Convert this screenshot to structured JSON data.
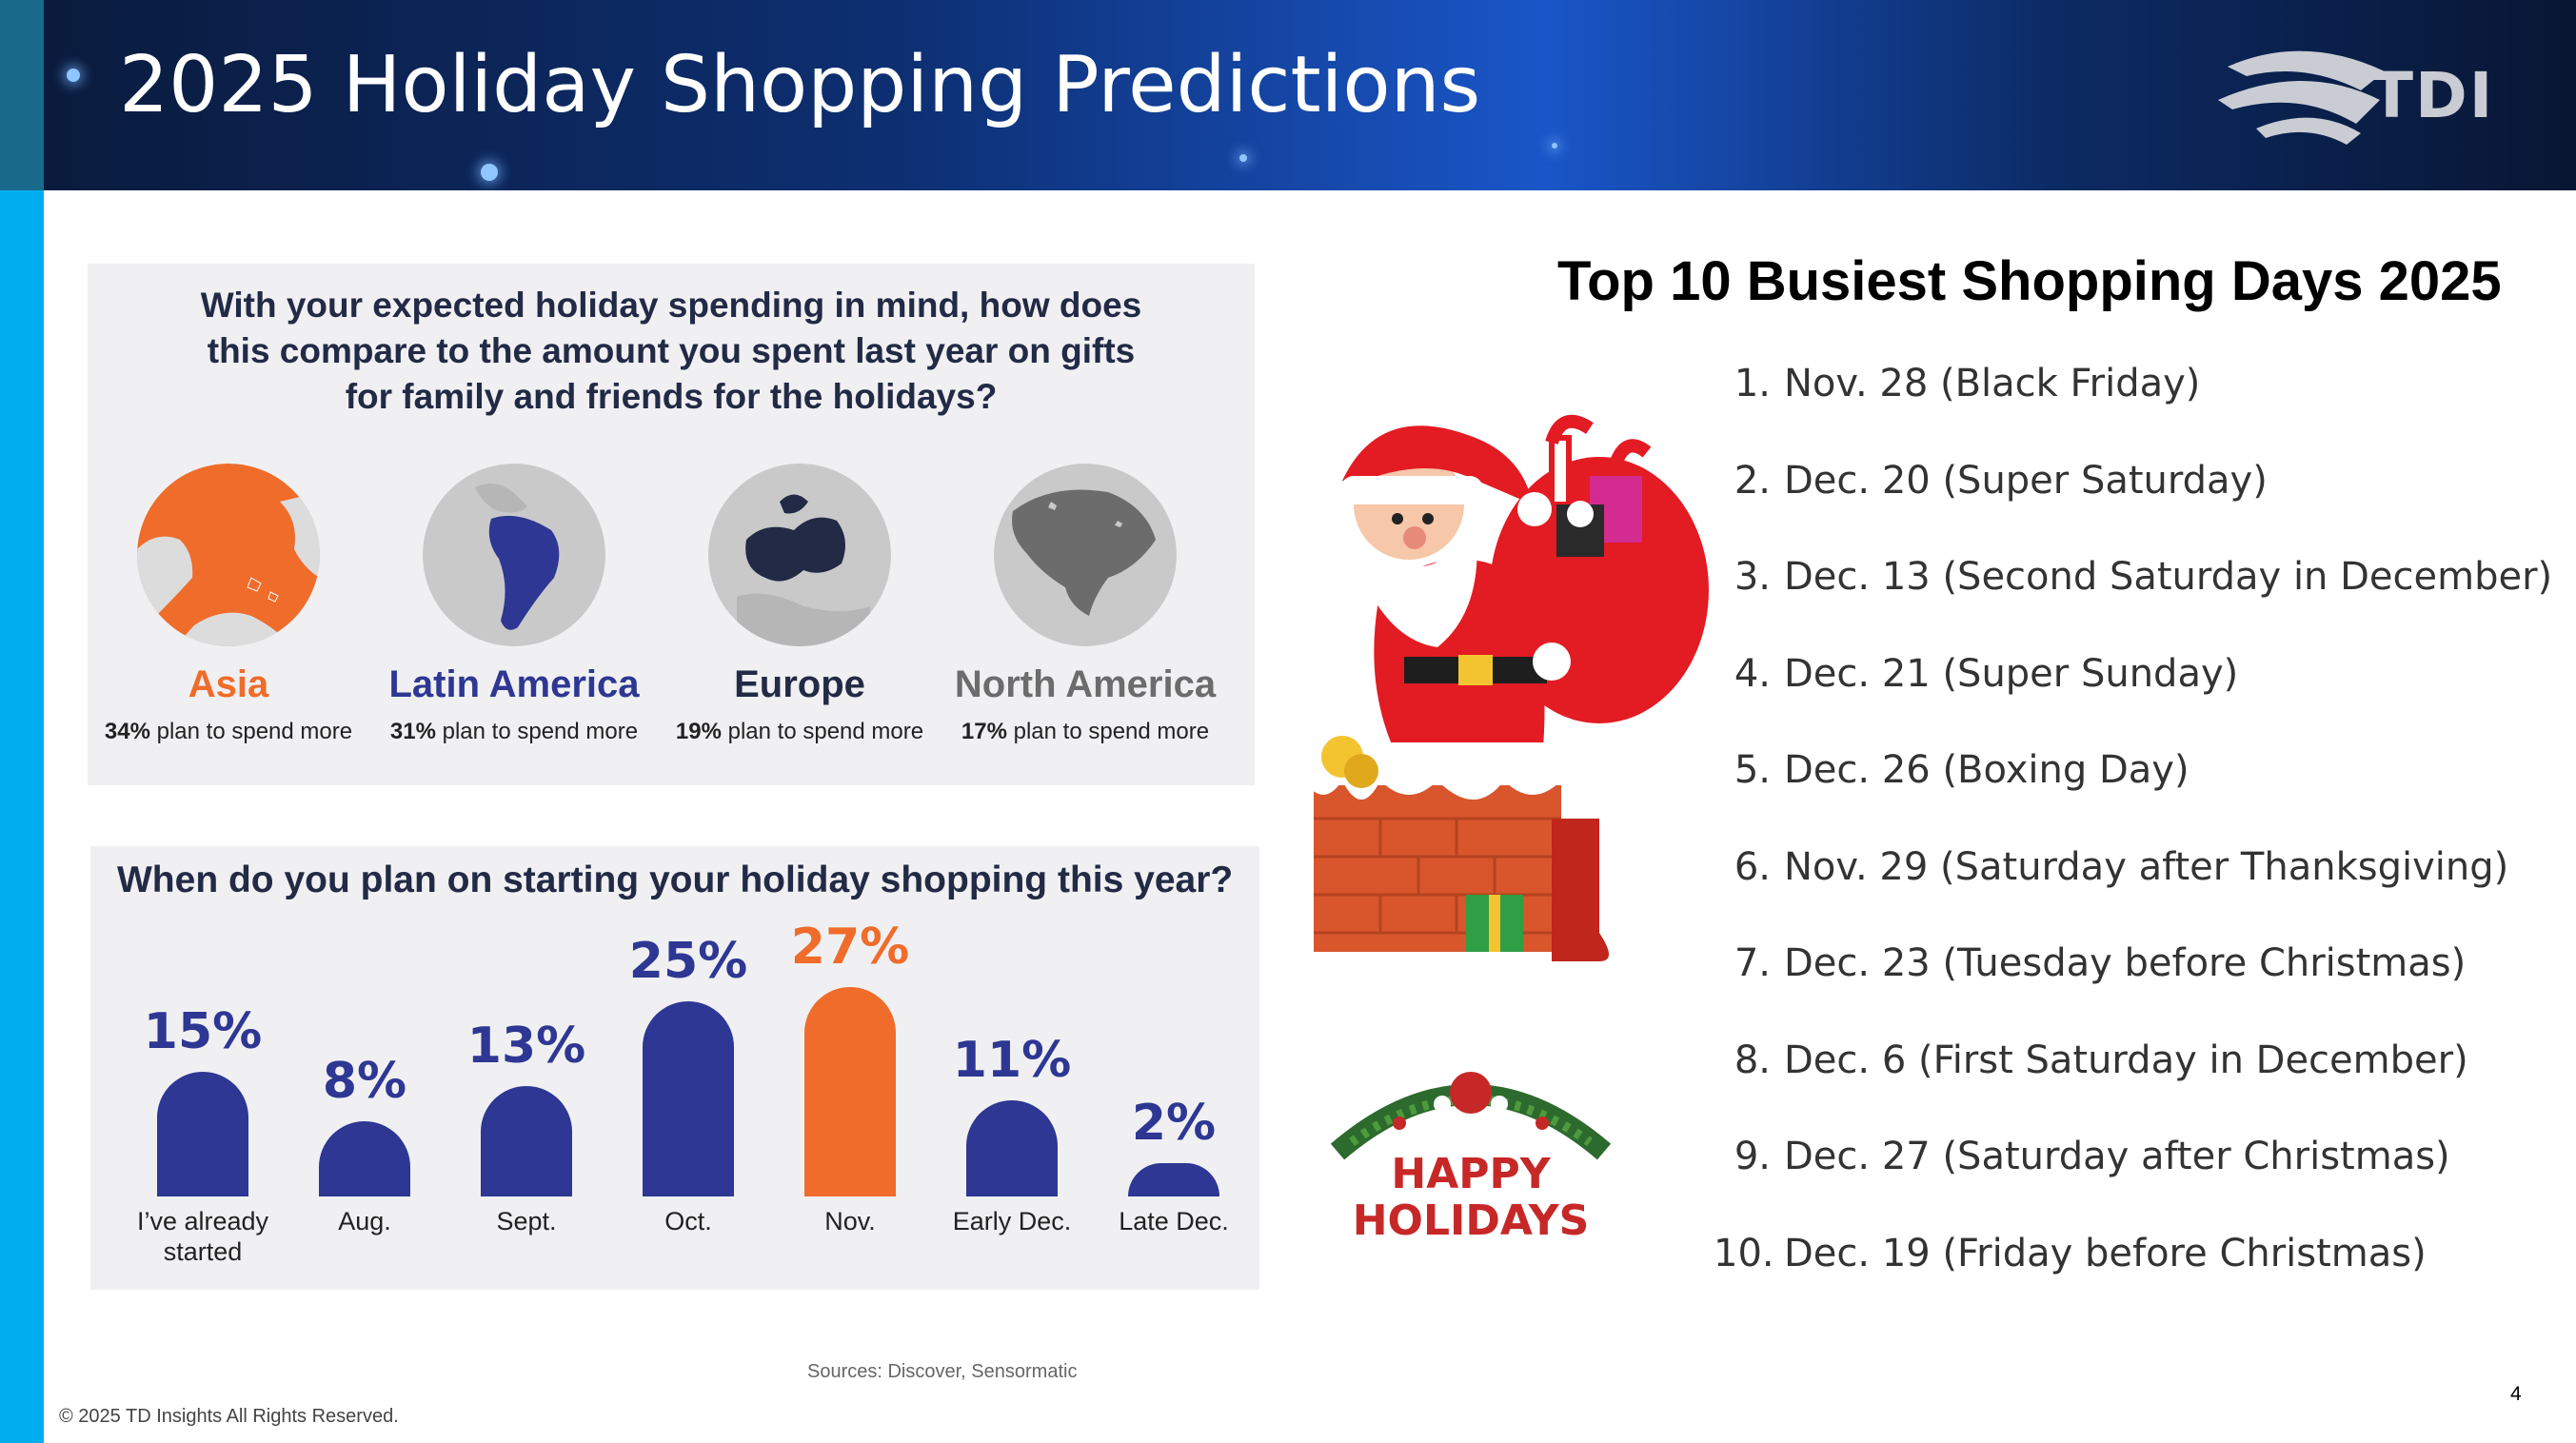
{
  "header": {
    "title": "2025 Holiday Shopping Predictions",
    "logo_text": "TDI"
  },
  "spending_panel": {
    "question": "With your expected holiday spending in mind, how does this compare to the amount you spent last year on gifts for family and friends for the holidays?",
    "question_lines": [
      "With your expected holiday spending in mind, how does",
      "this compare to the amount you spent last year on gifts",
      "for family and friends for the holidays?"
    ],
    "regions": [
      {
        "name": "Asia",
        "percent": "34%",
        "suffix": " plan to spend more",
        "color": "#ef6c2b"
      },
      {
        "name": "Latin America",
        "percent": "31%",
        "suffix": " plan to spend more",
        "color": "#2e3793"
      },
      {
        "name": "Europe",
        "percent": "19%",
        "suffix": " plan to spend more",
        "color": "#222a46"
      },
      {
        "name": "North America",
        "percent": "17%",
        "suffix": " plan to spend more",
        "color": "#6c6c6c"
      }
    ]
  },
  "chart_data": {
    "type": "bar",
    "title": "When do you plan on starting your holiday shopping this year?",
    "categories": [
      "I've already started",
      "Aug.",
      "Sept.",
      "Oct.",
      "Nov.",
      "Early Dec.",
      "Late Dec."
    ],
    "category_lines": [
      [
        "I’ve already",
        "started"
      ],
      [
        "Aug."
      ],
      [
        "Sept."
      ],
      [
        "Oct."
      ],
      [
        "Nov."
      ],
      [
        "Early Dec."
      ],
      [
        "Late Dec."
      ]
    ],
    "values": [
      15,
      8,
      13,
      25,
      27,
      11,
      2
    ],
    "labels": [
      "15%",
      "8%",
      "13%",
      "25%",
      "27%",
      "11%",
      "2%"
    ],
    "unit": "%",
    "ylim": [
      0,
      27
    ],
    "grid": false,
    "colors": {
      "default": "#2e3793",
      "highlight": "#ef6c2b"
    },
    "highlight_index": 4
  },
  "top10": {
    "title": "Top 10 Busiest Shopping Days 2025",
    "items": [
      {
        "n": "1.",
        "text": "Nov. 28 (Black Friday)"
      },
      {
        "n": "2.",
        "text": "Dec. 20 (Super Saturday)"
      },
      {
        "n": "3.",
        "text": "Dec. 13 (Second Saturday in December)"
      },
      {
        "n": "4.",
        "text": "Dec. 21 (Super Sunday)"
      },
      {
        "n": "5.",
        "text": "Dec. 26 (Boxing Day)"
      },
      {
        "n": "6.",
        "text": "Nov. 29 (Saturday after Thanksgiving)"
      },
      {
        "n": "7.",
        "text": "Dec. 23 (Tuesday before Christmas)"
      },
      {
        "n": "8.",
        "text": "Dec. 6 (First Saturday in December)"
      },
      {
        "n": "9.",
        "text": "Dec. 27 (Saturday after Christmas)"
      },
      {
        "n": "10.",
        "text": "Dec. 19 (Friday before Christmas)"
      }
    ]
  },
  "decor": {
    "happy_line1": "HAPPY",
    "happy_line2": "HOLIDAYS"
  },
  "footer": {
    "sources": "Sources: Discover,  Sensormatic",
    "copyright": "© 2025 TD Insights All Rights Reserved.",
    "page_number": "4"
  },
  "icons": [
    "asia-globe-icon",
    "latin-america-globe-icon",
    "europe-globe-icon",
    "north-america-globe-icon",
    "santa-chimney-illustration",
    "happy-holidays-garland-icon",
    "tdi-logo-icon"
  ]
}
